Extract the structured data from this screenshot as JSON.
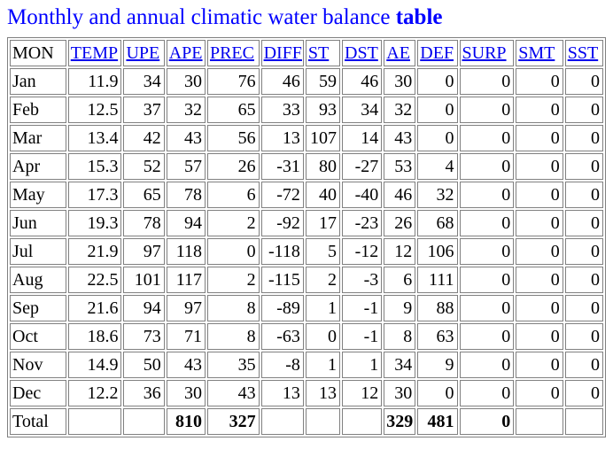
{
  "colors": {
    "title": "#0000ff",
    "link": "#0000ee",
    "border": "#808080",
    "text": "#000000",
    "background": "#ffffff"
  },
  "title": {
    "prefix": "Monthly and annual climatic water balance ",
    "bold": "table"
  },
  "table": {
    "columns": [
      {
        "key": "mon",
        "label": "MON",
        "is_link": false
      },
      {
        "key": "temp",
        "label": "TEMP",
        "is_link": true
      },
      {
        "key": "upe",
        "label": "UPE",
        "is_link": true
      },
      {
        "key": "ape",
        "label": "APE",
        "is_link": true
      },
      {
        "key": "prec",
        "label": "PREC",
        "is_link": true
      },
      {
        "key": "diff",
        "label": "DIFF",
        "is_link": true
      },
      {
        "key": "st",
        "label": "ST",
        "is_link": true
      },
      {
        "key": "dst",
        "label": "DST",
        "is_link": true
      },
      {
        "key": "ae",
        "label": "AE",
        "is_link": true
      },
      {
        "key": "def",
        "label": "DEF",
        "is_link": true
      },
      {
        "key": "surp",
        "label": "SURP",
        "is_link": true
      },
      {
        "key": "smt",
        "label": "SMT",
        "is_link": true
      },
      {
        "key": "sst",
        "label": "SST",
        "is_link": true
      }
    ],
    "rows": [
      {
        "mon": "Jan",
        "values": [
          "11.9",
          "34",
          "30",
          "76",
          "46",
          "59",
          "46",
          "30",
          "0",
          "0",
          "0",
          "0"
        ]
      },
      {
        "mon": "Feb",
        "values": [
          "12.5",
          "37",
          "32",
          "65",
          "33",
          "93",
          "34",
          "32",
          "0",
          "0",
          "0",
          "0"
        ]
      },
      {
        "mon": "Mar",
        "values": [
          "13.4",
          "42",
          "43",
          "56",
          "13",
          "107",
          "14",
          "43",
          "0",
          "0",
          "0",
          "0"
        ]
      },
      {
        "mon": "Apr",
        "values": [
          "15.3",
          "52",
          "57",
          "26",
          "-31",
          "80",
          "-27",
          "53",
          "4",
          "0",
          "0",
          "0"
        ]
      },
      {
        "mon": "May",
        "values": [
          "17.3",
          "65",
          "78",
          "6",
          "-72",
          "40",
          "-40",
          "46",
          "32",
          "0",
          "0",
          "0"
        ]
      },
      {
        "mon": "Jun",
        "values": [
          "19.3",
          "78",
          "94",
          "2",
          "-92",
          "17",
          "-23",
          "26",
          "68",
          "0",
          "0",
          "0"
        ]
      },
      {
        "mon": "Jul",
        "values": [
          "21.9",
          "97",
          "118",
          "0",
          "-118",
          "5",
          "-12",
          "12",
          "106",
          "0",
          "0",
          "0"
        ]
      },
      {
        "mon": "Aug",
        "values": [
          "22.5",
          "101",
          "117",
          "2",
          "-115",
          "2",
          "-3",
          "6",
          "111",
          "0",
          "0",
          "0"
        ]
      },
      {
        "mon": "Sep",
        "values": [
          "21.6",
          "94",
          "97",
          "8",
          "-89",
          "1",
          "-1",
          "9",
          "88",
          "0",
          "0",
          "0"
        ]
      },
      {
        "mon": "Oct",
        "values": [
          "18.6",
          "73",
          "71",
          "8",
          "-63",
          "0",
          "-1",
          "8",
          "63",
          "0",
          "0",
          "0"
        ]
      },
      {
        "mon": "Nov",
        "values": [
          "14.9",
          "50",
          "43",
          "35",
          "-8",
          "1",
          "1",
          "34",
          "9",
          "0",
          "0",
          "0"
        ]
      },
      {
        "mon": "Dec",
        "values": [
          "12.2",
          "36",
          "30",
          "43",
          "13",
          "13",
          "12",
          "30",
          "0",
          "0",
          "0",
          "0"
        ]
      }
    ],
    "total": {
      "label": "Total",
      "values": [
        "",
        "",
        "810",
        "327",
        "",
        "",
        "",
        "329",
        "481",
        "0",
        "",
        ""
      ]
    }
  }
}
